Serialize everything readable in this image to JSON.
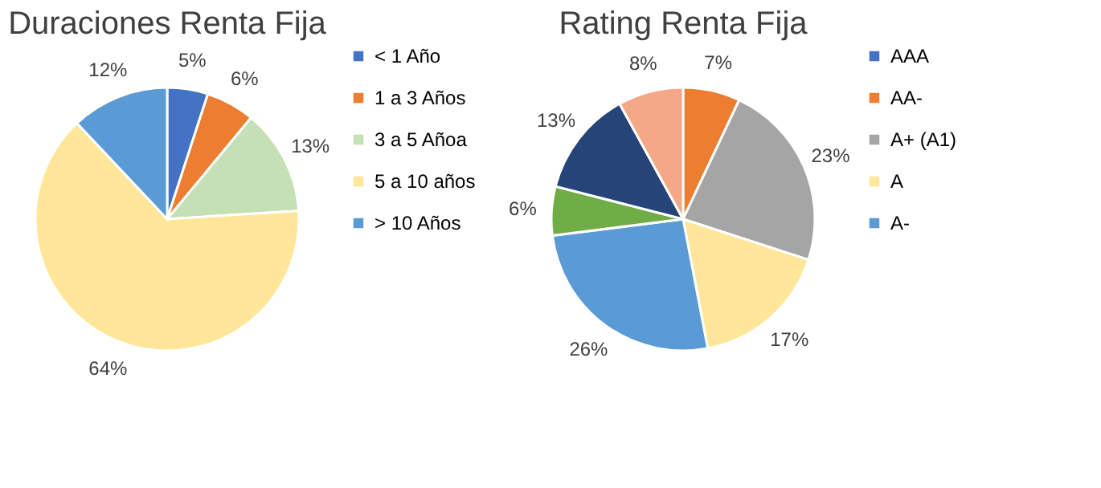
{
  "chart_data": [
    {
      "type": "pie",
      "title": "Duraciones Renta Fija",
      "categories": [
        "< 1 Año",
        "1 a 3 Años",
        "3 a 5 Añoa",
        "5 a 10 años",
        "> 10 Años"
      ],
      "values": [
        5,
        6,
        13,
        64,
        12
      ],
      "colors": [
        "#4472c4",
        "#ed7d31",
        "#c5e0b4",
        "#ffe699",
        "#5b9bd5"
      ],
      "value_labels": [
        "5%",
        "6%",
        "13%",
        "64%",
        "12%"
      ],
      "legend": "right"
    },
    {
      "type": "pie",
      "title": "Rating Renta Fija",
      "categories": [
        "AAA",
        "AA-",
        "A+ (A1)",
        "A",
        "A-",
        null,
        null,
        null
      ],
      "values": [
        0,
        7,
        23,
        17,
        26,
        6,
        13,
        8
      ],
      "colors": [
        "#4472c4",
        "#ed7d31",
        "#a5a5a5",
        "#ffe699",
        "#5b9bd5",
        "#70ad47",
        "#264478",
        "#f4a886"
      ],
      "value_labels": [
        null,
        "7%",
        "23%",
        "17%",
        "26%",
        "6%",
        "13%",
        "8%"
      ],
      "legend": "right"
    }
  ]
}
